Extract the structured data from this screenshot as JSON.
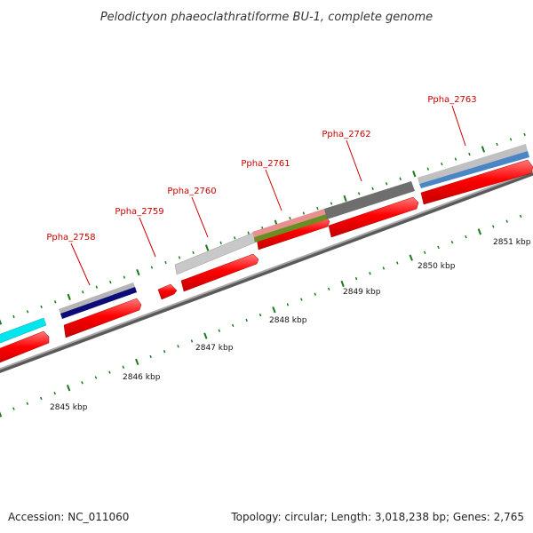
{
  "title": "Pelodictyon phaeoclathratiforme BU-1, complete genome",
  "footer": {
    "accession": "Accession: NC_011060",
    "summary": "Topology: circular; Length: 3,018,238 bp; Genes: 2,765"
  },
  "colors": {
    "cds": "#ff0000",
    "backbone": "#888888",
    "ticks": "#1a7a1a",
    "label": "#cc0000"
  },
  "genes": [
    {
      "locus": "Ppha_2758"
    },
    {
      "locus": "Ppha_2759"
    },
    {
      "locus": "Ppha_2760"
    },
    {
      "locus": "Ppha_2761"
    },
    {
      "locus": "Ppha_2762"
    },
    {
      "locus": "Ppha_2763"
    }
  ],
  "kbp_labels": [
    "2845 kbp",
    "2846 kbp",
    "2847 kbp",
    "2848 kbp",
    "2849 kbp",
    "2850 kbp",
    "2851 kbp"
  ]
}
